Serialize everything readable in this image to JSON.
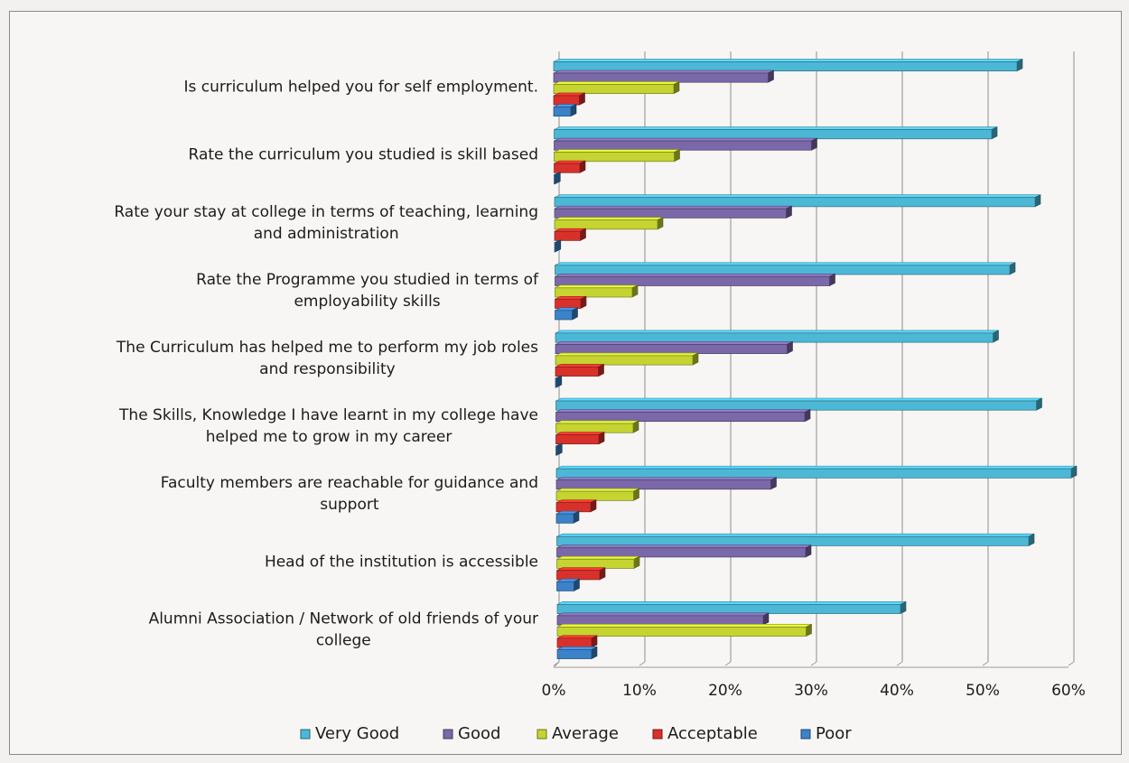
{
  "chart_data": {
    "type": "bar",
    "orientation": "horizontal",
    "categories": [
      "Is curriculum helped you for self employment.",
      "Rate the curriculum you studied is skill based",
      "Rate your stay at college in terms of teaching, learning and administration",
      "Rate the Programme you studied in terms of employability skills",
      "The Curriculum has helped me to perform my job roles and responsibility",
      "The Skills, Knowledge I have learnt in my college have helped me to grow in my career",
      "Faculty members are reachable for guidance and support",
      "Head of the institution is accessible",
      "Alumni Association / Network of old friends of your college"
    ],
    "category_lines": [
      [
        "Is curriculum helped you for self employment."
      ],
      [
        "Rate the curriculum you studied is skill based"
      ],
      [
        "Rate your stay at college in terms of teaching, learning",
        "and administration"
      ],
      [
        "Rate the Programme you studied in terms of",
        "employability skills"
      ],
      [
        "The Curriculum has helped me to perform my job roles",
        "and responsibility"
      ],
      [
        "The Skills, Knowledge I have learnt in my college have",
        "helped me to grow in my career"
      ],
      [
        "Faculty members are reachable for guidance and",
        "support"
      ],
      [
        "Head of the institution is accessible"
      ],
      [
        "Alumni Association / Network of old friends of your",
        "college"
      ]
    ],
    "series": [
      {
        "name": "Very Good",
        "color": "#4cb8d6",
        "values": [
          54,
          51,
          56,
          53,
          51,
          56,
          60,
          55,
          40
        ]
      },
      {
        "name": "Good",
        "color": "#7b68a8",
        "values": [
          25,
          30,
          27,
          32,
          27,
          29,
          25,
          29,
          24
        ]
      },
      {
        "name": "Average",
        "color": "#c5d431",
        "values": [
          14,
          14,
          12,
          9,
          16,
          9,
          9,
          9,
          29
        ]
      },
      {
        "name": "Acceptable",
        "color": "#d8312b",
        "values": [
          3,
          3,
          3,
          3,
          5,
          5,
          4,
          5,
          4
        ]
      },
      {
        "name": "Poor",
        "color": "#3b82c9",
        "values": [
          2,
          0,
          0,
          2,
          0,
          0,
          2,
          2,
          4
        ]
      }
    ],
    "xlim": [
      0,
      60
    ],
    "x_ticks": [
      "0%",
      "10%",
      "20%",
      "30%",
      "40%",
      "50%",
      "60%"
    ],
    "xlabel": "",
    "ylabel": "",
    "title": "",
    "grid": true,
    "legend_position": "bottom"
  }
}
